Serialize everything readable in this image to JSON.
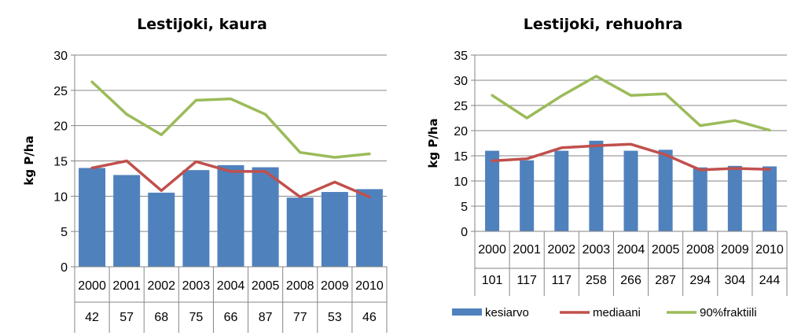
{
  "legend": {
    "items": [
      "kesiarvo",
      "mediaani",
      "90%fraktiili"
    ]
  },
  "colors": {
    "bar": "#4F81BD",
    "median": "#C0504D",
    "p90": "#9BBB59",
    "grid": "#868686"
  },
  "chart_data": [
    {
      "type": "bar",
      "title": "Lestijoki, kaura",
      "ylabel": "kg P/ha",
      "xlabel": "",
      "ylim": [
        0,
        30
      ],
      "yticks": [
        0,
        5,
        10,
        15,
        20,
        25,
        30
      ],
      "categories": [
        "2000",
        "2001",
        "2002",
        "2003",
        "2004",
        "2005",
        "2008",
        "2009",
        "2010"
      ],
      "counts": [
        "42",
        "57",
        "68",
        "75",
        "66",
        "87",
        "77",
        "53",
        "46"
      ],
      "grid": true,
      "series": [
        {
          "name": "kesiarvo",
          "type": "bar",
          "values": [
            14.0,
            13.0,
            10.5,
            13.7,
            14.4,
            14.1,
            9.8,
            10.6,
            11.0
          ]
        },
        {
          "name": "mediaani",
          "type": "line",
          "values": [
            14.0,
            15.0,
            10.8,
            14.9,
            13.5,
            13.5,
            9.9,
            12.0,
            9.9
          ]
        },
        {
          "name": "90%fraktiili",
          "type": "line",
          "values": [
            26.2,
            21.6,
            18.7,
            23.6,
            23.8,
            21.6,
            16.2,
            15.5,
            16.0
          ]
        }
      ]
    },
    {
      "type": "bar",
      "title": "Lestijoki, rehuohra",
      "ylabel": "kg P/ha",
      "xlabel": "",
      "ylim": [
        0,
        35
      ],
      "yticks": [
        0,
        5,
        10,
        15,
        20,
        25,
        30,
        35
      ],
      "categories": [
        "2000",
        "2001",
        "2002",
        "2003",
        "2004",
        "2005",
        "2008",
        "2009",
        "2010"
      ],
      "counts": [
        "101",
        "117",
        "117",
        "258",
        "266",
        "287",
        "294",
        "304",
        "244"
      ],
      "grid": true,
      "legend_position": "bottom",
      "series": [
        {
          "name": "kesiarvo",
          "type": "bar",
          "values": [
            16.0,
            14.1,
            16.0,
            18.0,
            16.0,
            16.2,
            12.7,
            13.0,
            12.9
          ]
        },
        {
          "name": "mediaani",
          "type": "line",
          "values": [
            14.0,
            14.4,
            16.6,
            17.0,
            17.3,
            15.2,
            12.2,
            12.5,
            12.3
          ]
        },
        {
          "name": "90%fraktiili",
          "type": "line",
          "values": [
            27.0,
            22.5,
            26.9,
            30.8,
            27.0,
            27.3,
            21.0,
            22.0,
            20.1
          ]
        }
      ]
    }
  ]
}
